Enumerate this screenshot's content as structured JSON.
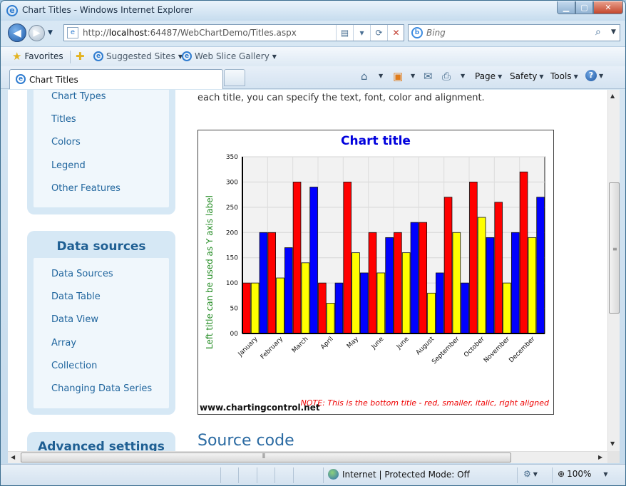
{
  "window": {
    "title": "Chart Titles - Windows Internet Explorer"
  },
  "nav": {
    "url_prefix": "http://",
    "url_host": "localhost",
    "url_rest": ":64487/WebChartDemo/Titles.aspx",
    "search_placeholder": "Bing"
  },
  "favorites_bar": {
    "favorites": "Favorites",
    "suggested_sites": "Suggested Sites",
    "web_slice_gallery": "Web Slice Gallery"
  },
  "tabs": [
    {
      "label": "Chart Titles"
    }
  ],
  "command_bar": {
    "page": "Page",
    "safety": "Safety",
    "tools": "Tools"
  },
  "sidebar": {
    "features_links": [
      "Chart Types",
      "Titles",
      "Colors",
      "Legend",
      "Other Features"
    ],
    "data_sources": {
      "heading": "Data sources",
      "links": [
        "Data Sources",
        "Data Table",
        "Data View",
        "Array",
        "Collection",
        "Changing Data Series"
      ]
    },
    "advanced": {
      "heading": "Advanced settings"
    }
  },
  "content": {
    "intro": "each title, you can specify the text, font, color and alignment.",
    "source_heading": "Source code"
  },
  "chart_data": {
    "type": "bar",
    "title": "Chart title",
    "ylabel": "Left title can be used as Y axis label",
    "bottom_title": "NOTE: This is the bottom title - red, smaller, italic, right aligned",
    "watermark": "www.chartingcontrol.net",
    "categories": [
      "January",
      "February",
      "March",
      "April",
      "May",
      "June",
      "June",
      "August",
      "September",
      "October",
      "November",
      "December"
    ],
    "ylim": [
      0,
      350
    ],
    "yticks": [
      "00",
      "50",
      "100",
      "150",
      "200",
      "250",
      "300",
      "350"
    ],
    "grid": true,
    "series": [
      {
        "color": "#ff0000",
        "values": [
          100,
          200,
          300,
          100,
          300,
          200,
          200,
          220,
          270,
          300,
          260,
          320
        ]
      },
      {
        "color": "#ffff00",
        "values": [
          100,
          110,
          140,
          60,
          160,
          120,
          160,
          80,
          200,
          230,
          100,
          190
        ]
      },
      {
        "color": "#0000ff",
        "values": [
          200,
          170,
          290,
          100,
          120,
          190,
          220,
          120,
          100,
          190,
          200,
          270
        ]
      }
    ]
  },
  "status": {
    "text": "Internet | Protected Mode: Off",
    "zoom": "100%"
  }
}
